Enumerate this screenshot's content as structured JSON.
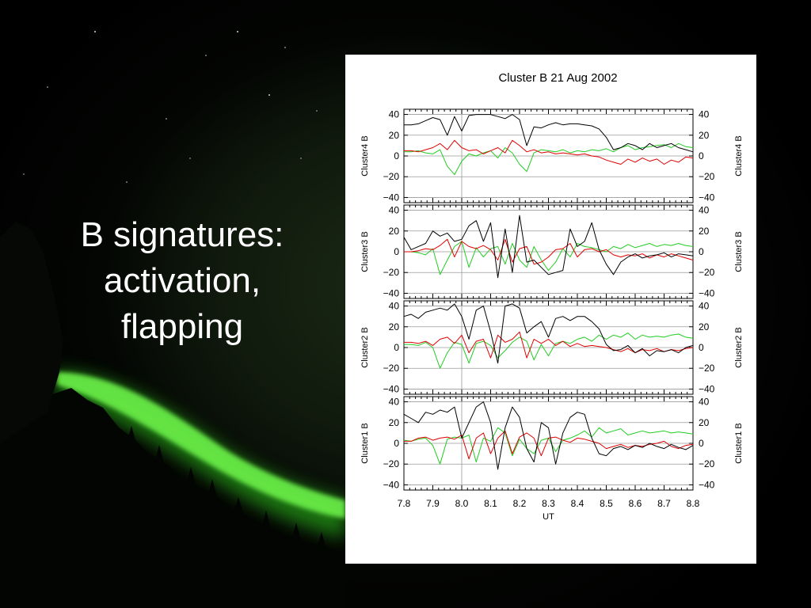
{
  "slide": {
    "heading_lines": [
      "B signatures:",
      "activation,",
      "flapping"
    ]
  },
  "colors": {
    "aurora": "#3fd42a",
    "series_black": "#000000",
    "series_red": "#e00000",
    "series_green": "#22cc22"
  },
  "chart_data": {
    "type": "line",
    "title": "Cluster B 21 Aug 2002",
    "xlabel": "UT",
    "xlim": [
      7.8,
      8.8
    ],
    "x_ticks": [
      "7.8",
      "7.9",
      "8.0",
      "8.1",
      "8.2",
      "8.3",
      "8.4",
      "8.5",
      "8.6",
      "8.7",
      "8.8"
    ],
    "ylim": [
      -45,
      45
    ],
    "y_ticks": [
      "40",
      "20",
      "0",
      "−20",
      "−40"
    ],
    "grid": true,
    "x": [
      7.8,
      7.825,
      7.85,
      7.875,
      7.9,
      7.925,
      7.95,
      7.975,
      8.0,
      8.025,
      8.05,
      8.075,
      8.1,
      8.125,
      8.15,
      8.175,
      8.2,
      8.225,
      8.25,
      8.275,
      8.3,
      8.325,
      8.35,
      8.375,
      8.4,
      8.425,
      8.45,
      8.475,
      8.5,
      8.525,
      8.55,
      8.575,
      8.6,
      8.625,
      8.65,
      8.675,
      8.7,
      8.725,
      8.75,
      8.775,
      8.8
    ],
    "panels": [
      {
        "ylabel": "Cluster4 B",
        "series": [
          {
            "color": "black",
            "values": [
              30,
              30,
              31,
              34,
              37,
              35,
              20,
              38,
              24,
              39,
              40,
              40,
              40,
              38,
              36,
              40,
              35,
              10,
              28,
              27,
              30,
              32,
              30,
              31,
              31,
              30,
              29,
              26,
              18,
              6,
              8,
              12,
              10,
              6,
              12,
              8,
              10,
              12,
              8,
              6,
              4
            ]
          },
          {
            "color": "red",
            "values": [
              5,
              5,
              4,
              6,
              8,
              12,
              6,
              15,
              8,
              5,
              6,
              2,
              5,
              8,
              3,
              15,
              10,
              4,
              6,
              3,
              4,
              2,
              3,
              2,
              1,
              2,
              0,
              -1,
              -4,
              -6,
              -8,
              -3,
              -6,
              -2,
              -5,
              -3,
              -8,
              -4,
              -6,
              -1,
              -2
            ]
          },
          {
            "color": "green",
            "values": [
              4,
              4,
              5,
              3,
              2,
              6,
              -10,
              -18,
              -5,
              2,
              0,
              3,
              5,
              -2,
              8,
              3,
              -8,
              -15,
              3,
              6,
              5,
              4,
              6,
              3,
              5,
              4,
              6,
              5,
              7,
              4,
              8,
              10,
              6,
              8,
              9,
              10,
              11,
              8,
              12,
              9,
              8
            ]
          }
        ]
      },
      {
        "ylabel": "Cluster3 B",
        "series": [
          {
            "color": "black",
            "values": [
              14,
              2,
              5,
              8,
              20,
              15,
              18,
              10,
              12,
              25,
              30,
              10,
              28,
              -25,
              22,
              -20,
              35,
              -10,
              -8,
              -15,
              -22,
              -20,
              -18,
              22,
              5,
              10,
              28,
              2,
              -12,
              -22,
              -10,
              -5,
              -2,
              -6,
              -4,
              -3,
              -1,
              -5,
              -2,
              -3,
              -4
            ]
          },
          {
            "color": "red",
            "values": [
              0,
              0,
              1,
              3,
              2,
              6,
              12,
              -5,
              10,
              5,
              3,
              6,
              2,
              -8,
              12,
              -10,
              3,
              5,
              -12,
              -10,
              -5,
              2,
              3,
              8,
              -5,
              2,
              3,
              0,
              2,
              -3,
              -5,
              -3,
              -4,
              -2,
              -6,
              -3,
              -5,
              -2,
              -4,
              -6,
              -8
            ]
          },
          {
            "color": "green",
            "values": [
              0,
              0,
              -1,
              -3,
              3,
              -22,
              -8,
              5,
              10,
              -15,
              4,
              -5,
              3,
              5,
              -12,
              8,
              -8,
              -15,
              5,
              -8,
              -18,
              -10,
              3,
              -5,
              8,
              5,
              4,
              2,
              0,
              5,
              3,
              7,
              4,
              6,
              8,
              5,
              7,
              6,
              8,
              6,
              5
            ]
          }
        ]
      },
      {
        "ylabel": "Cluster2 B",
        "series": [
          {
            "color": "black",
            "values": [
              30,
              32,
              28,
              34,
              36,
              38,
              36,
              42,
              30,
              8,
              36,
              40,
              15,
              -15,
              40,
              42,
              38,
              14,
              20,
              25,
              10,
              28,
              30,
              26,
              30,
              30,
              25,
              18,
              3,
              -3,
              -2,
              2,
              -5,
              -1,
              -8,
              -3,
              -4,
              -2,
              -5,
              0,
              2
            ]
          },
          {
            "color": "red",
            "values": [
              5,
              5,
              4,
              6,
              2,
              8,
              10,
              4,
              12,
              -5,
              6,
              8,
              -10,
              12,
              5,
              8,
              15,
              -10,
              8,
              4,
              8,
              2,
              6,
              1,
              4,
              1,
              2,
              1,
              0,
              -2,
              -4,
              -1,
              -5,
              -2,
              -3,
              -1,
              -4,
              -2,
              -3,
              -1,
              0
            ]
          },
          {
            "color": "green",
            "values": [
              3,
              3,
              2,
              5,
              0,
              -20,
              -5,
              5,
              3,
              -15,
              4,
              6,
              2,
              -10,
              -3,
              5,
              10,
              6,
              -12,
              3,
              -8,
              4,
              6,
              4,
              8,
              10,
              6,
              12,
              8,
              12,
              10,
              14,
              8,
              12,
              10,
              11,
              10,
              12,
              13,
              10,
              9
            ]
          }
        ]
      },
      {
        "ylabel": "Cluster1 B",
        "series": [
          {
            "color": "black",
            "values": [
              28,
              24,
              20,
              30,
              28,
              32,
              30,
              35,
              5,
              20,
              35,
              40,
              20,
              -25,
              15,
              35,
              25,
              -5,
              -18,
              20,
              15,
              -20,
              10,
              25,
              30,
              28,
              5,
              -10,
              -12,
              -5,
              -3,
              -6,
              -2,
              -4,
              0,
              -3,
              -5,
              -1,
              -4,
              -6,
              -2
            ]
          },
          {
            "color": "red",
            "values": [
              2,
              2,
              5,
              6,
              3,
              5,
              6,
              4,
              8,
              -15,
              5,
              10,
              -10,
              5,
              12,
              -10,
              6,
              10,
              5,
              -12,
              5,
              6,
              3,
              1,
              5,
              4,
              2,
              0,
              -5,
              -3,
              -1,
              -4,
              -2,
              -3,
              -1,
              0,
              2,
              -3,
              -5,
              -2,
              -1
            ]
          },
          {
            "color": "green",
            "values": [
              3,
              2,
              4,
              5,
              -2,
              -20,
              4,
              6,
              5,
              8,
              -18,
              5,
              2,
              15,
              10,
              -12,
              4,
              -5,
              -10,
              3,
              5,
              -8,
              3,
              5,
              8,
              12,
              6,
              15,
              10,
              12,
              14,
              8,
              10,
              12,
              10,
              11,
              12,
              10,
              11,
              10,
              9
            ]
          }
        ]
      }
    ]
  }
}
